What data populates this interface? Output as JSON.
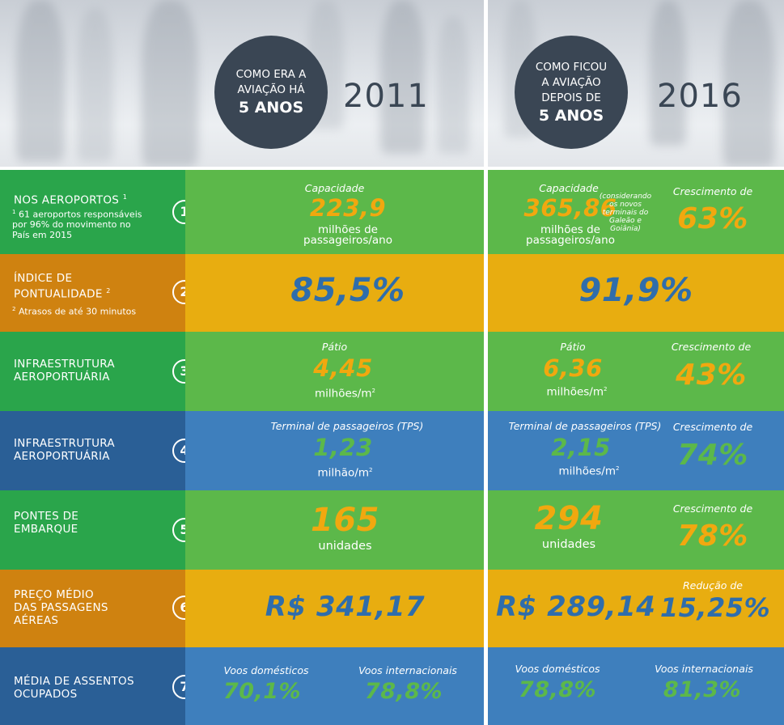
{
  "header": {
    "left": {
      "line1": "COMO ERA A",
      "line2": "AVIAÇÃO HÁ",
      "line3": "5 ANOS",
      "year": "2011"
    },
    "right": {
      "line1": "COMO FICOU",
      "line2": "A AVIAÇÃO",
      "line3": "DEPOIS DE",
      "line4": "5 ANOS",
      "year": "2016"
    }
  },
  "rows": [
    {
      "number": "1",
      "label": "NOS AEROPORTOS",
      "label_sup": "1",
      "note_sup": "1",
      "note": "61 aeroportos responsáveis por 96% do movimento no País em 2015",
      "before": {
        "caption": "Capacidade",
        "value": "223,9",
        "unit_line1": "milhões de",
        "unit_line2": "passageiros/ano"
      },
      "after": {
        "caption": "Capacidade",
        "value": "365,86",
        "unit_line1": "milhões de",
        "unit_line2": "passageiros/ano",
        "aside": "(considerando os novos terminais do Galeão e Goiânia)",
        "growth_caption": "Crescimento de",
        "growth_value": "63%"
      }
    },
    {
      "number": "2",
      "label_line1": "ÍNDICE DE",
      "label_line2": "PONTUALIDADE",
      "label_sup": "2",
      "note_sup": "2",
      "note": "Atrasos de até 30 minutos",
      "before": {
        "value": "85,5%"
      },
      "after": {
        "value": "91,9%"
      }
    },
    {
      "number": "3",
      "label_line1": "INFRAESTRUTURA",
      "label_line2": "AEROPORTUÁRIA",
      "before": {
        "caption": "Pátio",
        "value": "4,45",
        "unit": "milhões/m",
        "unit_sup": "2"
      },
      "after": {
        "caption": "Pátio",
        "value": "6,36",
        "unit": "milhões/m",
        "unit_sup": "2",
        "growth_caption": "Crescimento de",
        "growth_value": "43%"
      }
    },
    {
      "number": "4",
      "label_line1": "INFRAESTRUTURA",
      "label_line2": "AEROPORTUÁRIA",
      "before": {
        "caption": "Terminal de passageiros (TPS)",
        "value": "1,23",
        "unit": "milhão/m",
        "unit_sup": "2"
      },
      "after": {
        "caption": "Terminal de passageiros (TPS)",
        "value": "2,15",
        "unit": "milhões/m",
        "unit_sup": "2",
        "growth_caption": "Crescimento de",
        "growth_value": "74%"
      }
    },
    {
      "number": "5",
      "label_line1": "PONTES DE",
      "label_line2": "EMBARQUE",
      "before": {
        "value": "165",
        "unit": "unidades"
      },
      "after": {
        "value": "294",
        "unit": "unidades",
        "growth_caption": "Crescimento de",
        "growth_value": "78%"
      }
    },
    {
      "number": "6",
      "label_line1": "PREÇO MÉDIO",
      "label_line2": "DAS PASSAGENS",
      "label_line3": "AÉREAS",
      "before": {
        "value": "R$ 341,17"
      },
      "after": {
        "value": "R$ 289,14",
        "growth_caption": "Redução de",
        "growth_value": "15,25%"
      }
    },
    {
      "number": "7",
      "label_line1": "MÉDIA DE ASSENTOS",
      "label_line2": "OCUPADOS",
      "before": {
        "dom_caption": "Voos domésticos",
        "dom_value": "70,1%",
        "int_caption": "Voos internacionais",
        "int_value": "78,8%"
      },
      "after": {
        "dom_caption": "Voos domésticos",
        "dom_value": "78,8%",
        "int_caption": "Voos internacionais",
        "int_value": "81,3%"
      }
    }
  ],
  "colors": {
    "green_dark": "#2aa54b",
    "green": "#5cb84a",
    "orange_dark": "#cf8210",
    "orange": "#e8ad10",
    "blue_dark": "#2a5f96",
    "blue": "#3e7fbd",
    "circle": "#3a4654"
  }
}
